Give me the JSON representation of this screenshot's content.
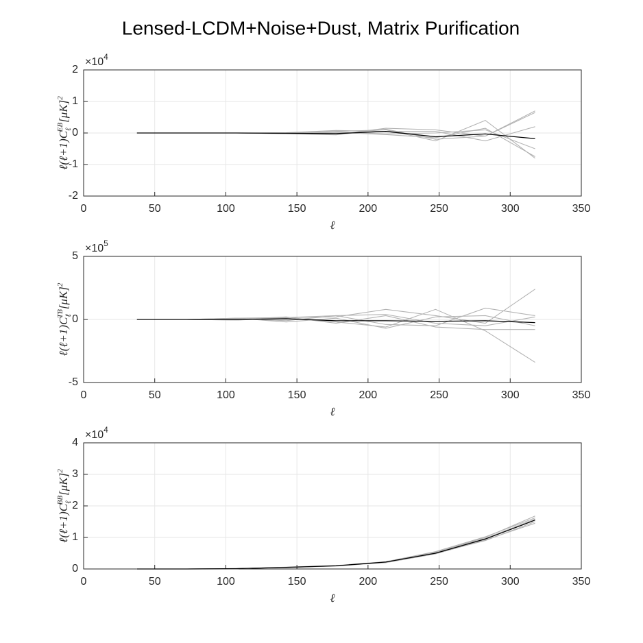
{
  "title": "Lensed-LCDM+Noise+Dust, Matrix Purification",
  "chart_data": [
    {
      "type": "line",
      "xlabel": "ℓ",
      "ylabel": {
        "main": "ℓ(ℓ+1)C",
        "sub": "ℓ",
        "sup": "EB",
        "unit": "[μK]",
        "unit_sup": "2"
      },
      "y_scale_base": "×10",
      "y_scale_exponent": "4",
      "x": [
        37.5,
        72.5,
        107.5,
        142.5,
        177.5,
        212.5,
        247.5,
        282.5,
        317.5
      ],
      "xlim": [
        0,
        350
      ],
      "xticks": [
        0,
        50,
        100,
        150,
        200,
        250,
        300,
        350
      ],
      "ylim": [
        -2,
        2
      ],
      "yticks": [
        -2,
        -1,
        0,
        1,
        2
      ],
      "grid": true,
      "series": [
        {
          "color": "#b3b3b3",
          "values": [
            0,
            0,
            0,
            -0.01,
            0.05,
            0.1,
            -0.25,
            0.4,
            -0.8
          ]
        },
        {
          "color": "#b3b3b3",
          "values": [
            0,
            0,
            0,
            0,
            -0.05,
            0.15,
            0.1,
            -0.1,
            0.7
          ]
        },
        {
          "color": "#b3b3b3",
          "values": [
            0,
            0,
            0,
            -0.02,
            0.02,
            -0.05,
            -0.15,
            0.15,
            -0.75
          ]
        },
        {
          "color": "#b3b3b3",
          "values": [
            0,
            0,
            0,
            0.01,
            0.08,
            0.05,
            0.05,
            -0.25,
            0.2
          ]
        },
        {
          "color": "#b3b3b3",
          "values": [
            0,
            0,
            0,
            -0.02,
            -0.06,
            0.12,
            -0.2,
            -0.1,
            0.65
          ]
        },
        {
          "color": "#b3b3b3",
          "values": [
            0,
            0,
            0,
            0,
            0.03,
            -0.03,
            0,
            0.1,
            -0.5
          ]
        },
        {
          "color": "#000000",
          "values": [
            0,
            0,
            0,
            -0.01,
            -0.02,
            0.05,
            -0.12,
            -0.03,
            -0.18
          ]
        }
      ]
    },
    {
      "type": "line",
      "xlabel": "ℓ",
      "ylabel": {
        "main": "ℓ(ℓ+1)C",
        "sub": "ℓ",
        "sup": "TB",
        "unit": "[μK]",
        "unit_sup": "2"
      },
      "y_scale_base": "×10",
      "y_scale_exponent": "5",
      "x": [
        37.5,
        72.5,
        107.5,
        142.5,
        177.5,
        212.5,
        247.5,
        282.5,
        317.5
      ],
      "xlim": [
        0,
        350
      ],
      "xticks": [
        0,
        50,
        100,
        150,
        200,
        250,
        300,
        350
      ],
      "ylim": [
        -5,
        5
      ],
      "yticks": [
        -5,
        0,
        5
      ],
      "grid": true,
      "series": [
        {
          "color": "#b3b3b3",
          "values": [
            0,
            0,
            0.1,
            0.15,
            0.2,
            0.8,
            0.3,
            -0.3,
            2.4
          ]
        },
        {
          "color": "#b3b3b3",
          "values": [
            0,
            0,
            -0.05,
            0.1,
            -0.2,
            -0.6,
            0.8,
            -0.9,
            -3.4
          ]
        },
        {
          "color": "#b3b3b3",
          "values": [
            0,
            0,
            0.05,
            -0.1,
            0.3,
            -0.4,
            -0.5,
            0.9,
            0.3
          ]
        },
        {
          "color": "#b3b3b3",
          "values": [
            0,
            0,
            0,
            0.2,
            -0.3,
            0.3,
            -0.6,
            -0.8,
            -0.8
          ]
        },
        {
          "color": "#b3b3b3",
          "values": [
            0,
            0,
            0.1,
            -0.2,
            0.1,
            -0.7,
            0.2,
            0.3,
            -0.5
          ]
        },
        {
          "color": "#b3b3b3",
          "values": [
            0,
            0,
            -0.05,
            0.15,
            0.3,
            0.4,
            -0.3,
            -0.5,
            0.2
          ]
        },
        {
          "color": "#000000",
          "values": [
            0,
            0,
            0,
            0.05,
            -0.1,
            -0.1,
            -0.15,
            -0.1,
            -0.25
          ]
        }
      ]
    },
    {
      "type": "line",
      "xlabel": "ℓ",
      "ylabel": {
        "main": "ℓ(ℓ+1)C",
        "sub": "ℓ",
        "sup": "BB",
        "unit": "[μK]",
        "unit_sup": "2"
      },
      "y_scale_base": "×10",
      "y_scale_exponent": "4",
      "x": [
        37.5,
        72.5,
        107.5,
        142.5,
        177.5,
        212.5,
        247.5,
        282.5,
        317.5
      ],
      "xlim": [
        0,
        350
      ],
      "xticks": [
        0,
        50,
        100,
        150,
        200,
        250,
        300,
        350
      ],
      "ylim": [
        0,
        4
      ],
      "yticks": [
        0,
        1,
        2,
        3,
        4
      ],
      "grid": true,
      "series": [
        {
          "color": "#b3b3b3",
          "values": [
            0,
            0,
            0.01,
            0.05,
            0.1,
            0.22,
            0.52,
            1.0,
            1.68
          ]
        },
        {
          "color": "#b3b3b3",
          "values": [
            0,
            0,
            0.01,
            0.05,
            0.1,
            0.2,
            0.48,
            0.92,
            1.45
          ]
        },
        {
          "color": "#b3b3b3",
          "values": [
            0,
            0,
            0.01,
            0.06,
            0.11,
            0.23,
            0.55,
            1.02,
            1.62
          ]
        },
        {
          "color": "#b3b3b3",
          "values": [
            0,
            0,
            0.01,
            0.05,
            0.09,
            0.21,
            0.5,
            0.9,
            1.5
          ]
        },
        {
          "color": "#b3b3b3",
          "values": [
            0,
            0,
            0.01,
            0.05,
            0.1,
            0.22,
            0.53,
            0.97,
            1.58
          ]
        },
        {
          "color": "#000000",
          "values": [
            0,
            0,
            0.01,
            0.05,
            0.1,
            0.22,
            0.5,
            0.95,
            1.55
          ]
        }
      ]
    }
  ]
}
